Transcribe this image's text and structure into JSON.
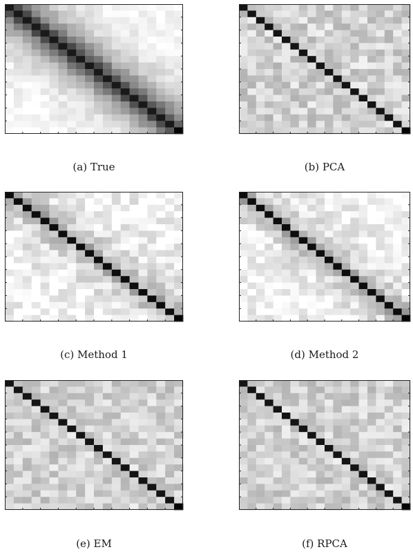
{
  "chart_data": [
    {
      "type": "heatmap",
      "caption": "(a) True",
      "profile": "smooth",
      "noise": 0.06,
      "seed": 11
    },
    {
      "type": "heatmap",
      "caption": "(b) PCA",
      "profile": "diag",
      "noise": 0.13,
      "seed": 23
    },
    {
      "type": "heatmap",
      "caption": "(c) Method 1",
      "profile": "banded",
      "noise": 0.12,
      "seed": 37
    },
    {
      "type": "heatmap",
      "caption": "(d) Method 2",
      "profile": "banded",
      "noise": 0.11,
      "seed": 41
    },
    {
      "type": "heatmap",
      "caption": "(e) EM",
      "profile": "diag",
      "noise": 0.12,
      "seed": 53
    },
    {
      "type": "heatmap",
      "caption": "(f) RPCA",
      "profile": "diag",
      "noise": 0.12,
      "seed": 67
    }
  ],
  "grid": {
    "rows": 20,
    "cols": 20,
    "colormap": "gray",
    "tick_labels": false
  }
}
